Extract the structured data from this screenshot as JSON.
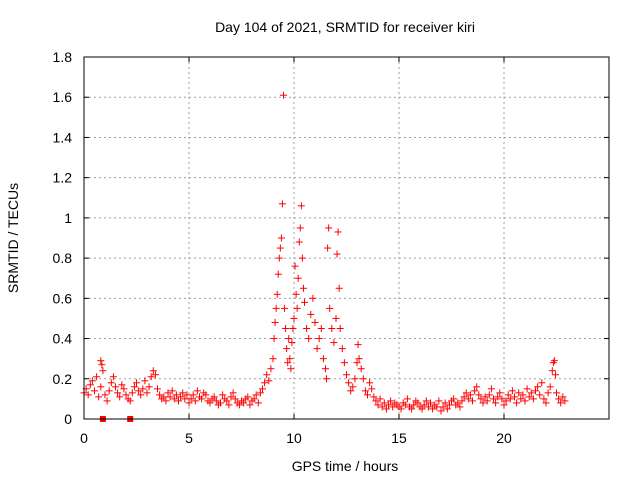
{
  "chart_data": {
    "type": "scatter",
    "title": "Day 104 of 2021, SRMTID for receiver kiri",
    "xlabel": "GPS time / hours",
    "ylabel": "SRMTID / TECUs",
    "xlim": [
      0,
      25
    ],
    "ylim": [
      0,
      1.8
    ],
    "x_ticks": [
      0,
      5,
      10,
      15,
      20
    ],
    "x_tick_labels": [
      "0",
      "5",
      "10",
      "15",
      "20"
    ],
    "y_ticks": [
      0,
      0.2,
      0.4,
      0.6,
      0.8,
      1.0,
      1.2,
      1.4,
      1.6,
      1.8
    ],
    "y_tick_labels": [
      "0",
      "0.2",
      "0.4",
      "0.6",
      "0.8",
      "1",
      "1.2",
      "1.4",
      "1.6",
      "1.8"
    ],
    "grid": true,
    "marker": "plus",
    "color": "#ff0000",
    "series": [
      {
        "name": "SRMTID",
        "points": [
          [
            0.0,
            0.13
          ],
          [
            0.1,
            0.15
          ],
          [
            0.2,
            0.12
          ],
          [
            0.3,
            0.17
          ],
          [
            0.4,
            0.19
          ],
          [
            0.5,
            0.14
          ],
          [
            0.6,
            0.21
          ],
          [
            0.7,
            0.11
          ],
          [
            0.8,
            0.16
          ],
          [
            0.8,
            0.29
          ],
          [
            0.85,
            0.27
          ],
          [
            0.9,
            0.24
          ],
          [
            1.0,
            0.12
          ],
          [
            1.1,
            0.09
          ],
          [
            1.2,
            0.14
          ],
          [
            1.3,
            0.18
          ],
          [
            1.4,
            0.21
          ],
          [
            1.5,
            0.16
          ],
          [
            1.6,
            0.13
          ],
          [
            1.7,
            0.11
          ],
          [
            1.8,
            0.17
          ],
          [
            1.9,
            0.15
          ],
          [
            2.0,
            0.12
          ],
          [
            2.1,
            0.1
          ],
          [
            2.2,
            0.09
          ],
          [
            2.3,
            0.13
          ],
          [
            2.4,
            0.16
          ],
          [
            2.5,
            0.18
          ],
          [
            2.6,
            0.14
          ],
          [
            2.7,
            0.12
          ],
          [
            2.8,
            0.15
          ],
          [
            2.9,
            0.19
          ],
          [
            3.0,
            0.13
          ],
          [
            3.1,
            0.16
          ],
          [
            3.2,
            0.21
          ],
          [
            3.3,
            0.24
          ],
          [
            3.4,
            0.22
          ],
          [
            3.5,
            0.15
          ],
          [
            3.6,
            0.12
          ],
          [
            3.7,
            0.1
          ],
          [
            3.8,
            0.11
          ],
          [
            3.9,
            0.09
          ],
          [
            4.0,
            0.13
          ],
          [
            4.1,
            0.11
          ],
          [
            4.2,
            0.14
          ],
          [
            4.3,
            0.1
          ],
          [
            4.4,
            0.12
          ],
          [
            4.5,
            0.09
          ],
          [
            4.6,
            0.11
          ],
          [
            4.7,
            0.13
          ],
          [
            4.8,
            0.1
          ],
          [
            4.9,
            0.12
          ],
          [
            5.0,
            0.08
          ],
          [
            5.1,
            0.1
          ],
          [
            5.2,
            0.12
          ],
          [
            5.3,
            0.09
          ],
          [
            5.4,
            0.14
          ],
          [
            5.5,
            0.11
          ],
          [
            5.6,
            0.1
          ],
          [
            5.7,
            0.13
          ],
          [
            5.8,
            0.12
          ],
          [
            5.9,
            0.09
          ],
          [
            6.0,
            0.08
          ],
          [
            6.1,
            0.1
          ],
          [
            6.2,
            0.11
          ],
          [
            6.3,
            0.09
          ],
          [
            6.4,
            0.07
          ],
          [
            6.5,
            0.08
          ],
          [
            6.6,
            0.12
          ],
          [
            6.7,
            0.1
          ],
          [
            6.8,
            0.09
          ],
          [
            6.9,
            0.07
          ],
          [
            7.0,
            0.11
          ],
          [
            7.1,
            0.13
          ],
          [
            7.2,
            0.1
          ],
          [
            7.3,
            0.08
          ],
          [
            7.4,
            0.07
          ],
          [
            7.5,
            0.09
          ],
          [
            7.6,
            0.08
          ],
          [
            7.7,
            0.1
          ],
          [
            7.8,
            0.11
          ],
          [
            7.9,
            0.07
          ],
          [
            8.0,
            0.09
          ],
          [
            8.1,
            0.1
          ],
          [
            8.2,
            0.12
          ],
          [
            8.3,
            0.08
          ],
          [
            8.4,
            0.13
          ],
          [
            8.5,
            0.15
          ],
          [
            8.6,
            0.18
          ],
          [
            8.7,
            0.22
          ],
          [
            8.8,
            0.19
          ],
          [
            8.9,
            0.25
          ],
          [
            9.0,
            0.3
          ],
          [
            9.05,
            0.4
          ],
          [
            9.1,
            0.48
          ],
          [
            9.15,
            0.55
          ],
          [
            9.2,
            0.62
          ],
          [
            9.25,
            0.72
          ],
          [
            9.3,
            0.8
          ],
          [
            9.35,
            0.85
          ],
          [
            9.4,
            0.9
          ],
          [
            9.45,
            1.07
          ],
          [
            9.5,
            1.61
          ],
          [
            9.55,
            0.55
          ],
          [
            9.6,
            0.45
          ],
          [
            9.65,
            0.35
          ],
          [
            9.7,
            0.28
          ],
          [
            9.75,
            0.4
          ],
          [
            9.8,
            0.3
          ],
          [
            9.85,
            0.25
          ],
          [
            9.9,
            0.38
          ],
          [
            9.95,
            0.45
          ],
          [
            10.0,
            0.5
          ],
          [
            10.05,
            0.76
          ],
          [
            10.1,
            0.62
          ],
          [
            10.15,
            0.55
          ],
          [
            10.2,
            0.7
          ],
          [
            10.25,
            0.88
          ],
          [
            10.3,
            0.95
          ],
          [
            10.35,
            1.06
          ],
          [
            10.4,
            0.8
          ],
          [
            10.45,
            0.65
          ],
          [
            10.5,
            0.58
          ],
          [
            10.6,
            0.45
          ],
          [
            10.7,
            0.4
          ],
          [
            10.8,
            0.52
          ],
          [
            10.9,
            0.6
          ],
          [
            11.0,
            0.48
          ],
          [
            11.1,
            0.35
          ],
          [
            11.2,
            0.4
          ],
          [
            11.3,
            0.45
          ],
          [
            11.4,
            0.3
          ],
          [
            11.5,
            0.25
          ],
          [
            11.55,
            0.2
          ],
          [
            11.6,
            0.85
          ],
          [
            11.65,
            0.95
          ],
          [
            11.7,
            0.55
          ],
          [
            11.8,
            0.45
          ],
          [
            11.9,
            0.38
          ],
          [
            12.0,
            0.5
          ],
          [
            12.05,
            0.82
          ],
          [
            12.1,
            0.93
          ],
          [
            12.15,
            0.65
          ],
          [
            12.2,
            0.45
          ],
          [
            12.3,
            0.35
          ],
          [
            12.4,
            0.28
          ],
          [
            12.5,
            0.22
          ],
          [
            12.6,
            0.18
          ],
          [
            12.7,
            0.14
          ],
          [
            12.8,
            0.16
          ],
          [
            12.9,
            0.2
          ],
          [
            13.0,
            0.28
          ],
          [
            13.05,
            0.37
          ],
          [
            13.1,
            0.3
          ],
          [
            13.2,
            0.25
          ],
          [
            13.3,
            0.2
          ],
          [
            13.4,
            0.14
          ],
          [
            13.5,
            0.12
          ],
          [
            13.6,
            0.18
          ],
          [
            13.7,
            0.15
          ],
          [
            13.8,
            0.11
          ],
          [
            13.9,
            0.09
          ],
          [
            14.0,
            0.07
          ],
          [
            14.1,
            0.1
          ],
          [
            14.2,
            0.06
          ],
          [
            14.3,
            0.08
          ],
          [
            14.4,
            0.05
          ],
          [
            14.5,
            0.07
          ],
          [
            14.6,
            0.09
          ],
          [
            14.7,
            0.06
          ],
          [
            14.8,
            0.08
          ],
          [
            14.9,
            0.07
          ],
          [
            15.0,
            0.06
          ],
          [
            15.1,
            0.05
          ],
          [
            15.2,
            0.08
          ],
          [
            15.3,
            0.07
          ],
          [
            15.4,
            0.1
          ],
          [
            15.5,
            0.06
          ],
          [
            15.6,
            0.05
          ],
          [
            15.7,
            0.07
          ],
          [
            15.8,
            0.09
          ],
          [
            15.9,
            0.08
          ],
          [
            16.0,
            0.06
          ],
          [
            16.1,
            0.05
          ],
          [
            16.2,
            0.07
          ],
          [
            16.3,
            0.09
          ],
          [
            16.4,
            0.06
          ],
          [
            16.5,
            0.08
          ],
          [
            16.6,
            0.05
          ],
          [
            16.7,
            0.07
          ],
          [
            16.8,
            0.06
          ],
          [
            16.9,
            0.09
          ],
          [
            17.0,
            0.04
          ],
          [
            17.1,
            0.06
          ],
          [
            17.2,
            0.08
          ],
          [
            17.3,
            0.05
          ],
          [
            17.4,
            0.07
          ],
          [
            17.5,
            0.09
          ],
          [
            17.6,
            0.1
          ],
          [
            17.7,
            0.07
          ],
          [
            17.8,
            0.08
          ],
          [
            17.9,
            0.06
          ],
          [
            18.0,
            0.09
          ],
          [
            18.1,
            0.11
          ],
          [
            18.2,
            0.13
          ],
          [
            18.3,
            0.1
          ],
          [
            18.4,
            0.12
          ],
          [
            18.5,
            0.09
          ],
          [
            18.6,
            0.14
          ],
          [
            18.7,
            0.16
          ],
          [
            18.8,
            0.12
          ],
          [
            18.9,
            0.1
          ],
          [
            19.0,
            0.08
          ],
          [
            19.1,
            0.11
          ],
          [
            19.2,
            0.09
          ],
          [
            19.3,
            0.12
          ],
          [
            19.4,
            0.15
          ],
          [
            19.5,
            0.1
          ],
          [
            19.6,
            0.08
          ],
          [
            19.7,
            0.11
          ],
          [
            19.8,
            0.13
          ],
          [
            19.9,
            0.1
          ],
          [
            20.0,
            0.07
          ],
          [
            20.1,
            0.09
          ],
          [
            20.2,
            0.12
          ],
          [
            20.3,
            0.1
          ],
          [
            20.4,
            0.14
          ],
          [
            20.5,
            0.11
          ],
          [
            20.6,
            0.08
          ],
          [
            20.7,
            0.13
          ],
          [
            20.8,
            0.1
          ],
          [
            20.9,
            0.12
          ],
          [
            21.0,
            0.09
          ],
          [
            21.1,
            0.15
          ],
          [
            21.2,
            0.11
          ],
          [
            21.3,
            0.13
          ],
          [
            21.4,
            0.1
          ],
          [
            21.5,
            0.14
          ],
          [
            21.6,
            0.16
          ],
          [
            21.7,
            0.12
          ],
          [
            21.8,
            0.18
          ],
          [
            21.9,
            0.1
          ],
          [
            22.0,
            0.08
          ],
          [
            22.1,
            0.13
          ],
          [
            22.2,
            0.16
          ],
          [
            22.3,
            0.24
          ],
          [
            22.35,
            0.28
          ],
          [
            22.4,
            0.29
          ],
          [
            22.45,
            0.22
          ],
          [
            22.5,
            0.13
          ],
          [
            22.6,
            0.1
          ],
          [
            22.7,
            0.08
          ],
          [
            22.8,
            0.11
          ],
          [
            22.9,
            0.09
          ]
        ]
      }
    ],
    "square_markers": [
      [
        0.9,
        0.0
      ],
      [
        2.2,
        0.0
      ]
    ]
  }
}
